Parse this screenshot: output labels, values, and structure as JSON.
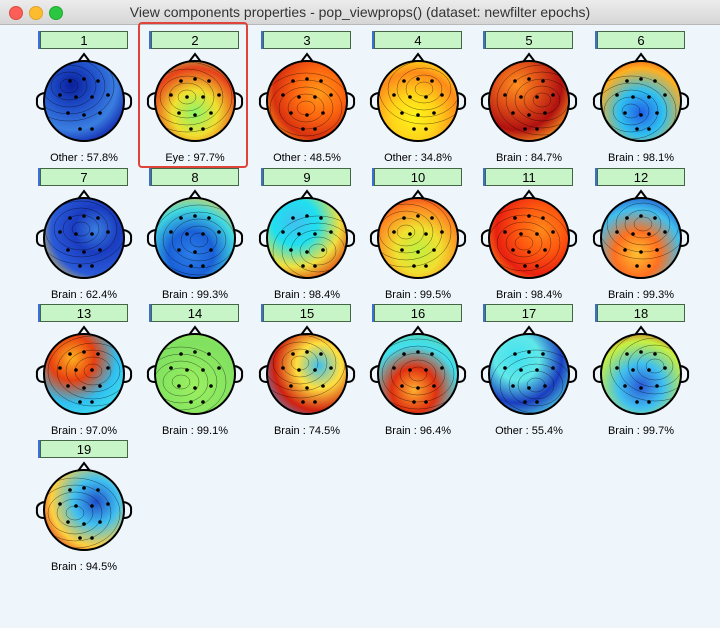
{
  "window": {
    "title": "View components properties - pop_viewprops() (dataset: newfilter epochs)"
  },
  "components": [
    {
      "id": "1",
      "label": "Other : 57.8%",
      "colors": [
        "#0a1f9c",
        "#1f4ec9",
        "#3a7ee0",
        "#0b1aa8"
      ]
    },
    {
      "id": "2",
      "label": "Eye : 97.7%",
      "colors": [
        "#8cf56a",
        "#f0e030",
        "#e8401a",
        "#8cf56a"
      ]
    },
    {
      "id": "3",
      "label": "Other : 48.5%",
      "colors": [
        "#ff9a1a",
        "#ff6a10",
        "#d83010",
        "#ffb01a"
      ]
    },
    {
      "id": "4",
      "label": "Other : 34.8%",
      "colors": [
        "#fff41a",
        "#ffd41a",
        "#ff8a1a",
        "#fff81a"
      ]
    },
    {
      "id": "5",
      "label": "Brain : 84.7%",
      "colors": [
        "#ff9020",
        "#e05018",
        "#b01010",
        "#ffa020"
      ]
    },
    {
      "id": "6",
      "label": "Brain : 98.1%",
      "colors": [
        "#2060e8",
        "#30c0f0",
        "#ffb020",
        "#e02010"
      ]
    },
    {
      "id": "7",
      "label": "Brain : 62.4%",
      "colors": [
        "#3a7ee0",
        "#1a3cc0",
        "#2a5ad8",
        "#ffd030"
      ]
    },
    {
      "id": "8",
      "label": "Brain : 99.3%",
      "colors": [
        "#2a7ee8",
        "#1a60d8",
        "#40d8e0",
        "#ffd040"
      ]
    },
    {
      "id": "9",
      "label": "Brain : 98.4%",
      "colors": [
        "#40c0f0",
        "#1fe0f0",
        "#f0e040",
        "#e04010"
      ]
    },
    {
      "id": "10",
      "label": "Brain : 99.5%",
      "colors": [
        "#c0f040",
        "#f0e030",
        "#ff8020",
        "#d01010"
      ]
    },
    {
      "id": "11",
      "label": "Brain : 98.4%",
      "colors": [
        "#ff8a1a",
        "#ff5a10",
        "#e82010",
        "#ffa01a"
      ]
    },
    {
      "id": "12",
      "label": "Brain : 99.3%",
      "colors": [
        "#ffc030",
        "#ff7020",
        "#40c0f0",
        "#1a3cc0"
      ]
    },
    {
      "id": "13",
      "label": "Brain : 97.0%",
      "colors": [
        "#ffb020",
        "#e84010",
        "#30c0f0",
        "#40e0f0"
      ]
    },
    {
      "id": "14",
      "label": "Brain : 99.1%",
      "colors": [
        "#9cf060",
        "#8ce860",
        "#80e060",
        "#a0f060"
      ]
    },
    {
      "id": "15",
      "label": "Brain : 74.5%",
      "colors": [
        "#40c0f0",
        "#ffe040",
        "#d02010",
        "#50a0f0"
      ]
    },
    {
      "id": "16",
      "label": "Brain : 96.4%",
      "colors": [
        "#ffb030",
        "#e03010",
        "#40e0f0",
        "#60d0a0"
      ]
    },
    {
      "id": "17",
      "label": "Other : 55.4%",
      "colors": [
        "#40e0f0",
        "#60e8e8",
        "#1a3cc0",
        "#50d0e0"
      ]
    },
    {
      "id": "18",
      "label": "Brain : 99.7%",
      "colors": [
        "#2a5ad8",
        "#40c0f0",
        "#c8f040",
        "#d01010"
      ]
    },
    {
      "id": "19",
      "label": "Brain : 94.5%",
      "colors": [
        "#1f4ec9",
        "#40c0f0",
        "#ffd040",
        "#d01010"
      ]
    }
  ]
}
